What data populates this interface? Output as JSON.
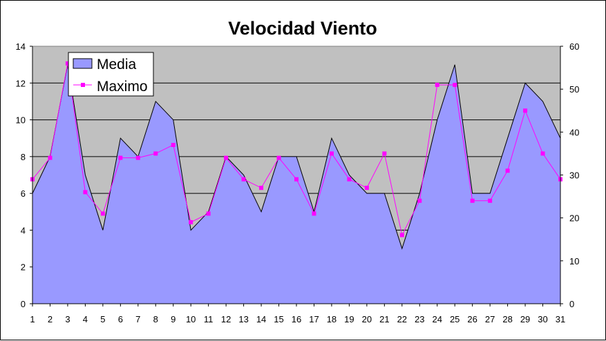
{
  "chart_data": {
    "type": "area",
    "title": "Velocidad Viento",
    "xlabel": "",
    "ylabel": "",
    "categories": [
      "1",
      "2",
      "3",
      "4",
      "5",
      "6",
      "7",
      "8",
      "9",
      "10",
      "11",
      "12",
      "13",
      "14",
      "15",
      "16",
      "17",
      "18",
      "19",
      "20",
      "21",
      "22",
      "23",
      "24",
      "25",
      "26",
      "27",
      "28",
      "29",
      "30",
      "31"
    ],
    "left_axis": {
      "min": 0,
      "max": 14,
      "step": 2,
      "ticks": [
        "0",
        "2",
        "4",
        "6",
        "8",
        "10",
        "12",
        "14"
      ]
    },
    "right_axis": {
      "min": 0,
      "max": 60,
      "step": 10,
      "ticks": [
        "0",
        "10",
        "20",
        "30",
        "40",
        "50",
        "60"
      ]
    },
    "series": [
      {
        "name": "Media",
        "type": "area",
        "axis": "left",
        "color": "#9999ff",
        "values": [
          6,
          8,
          13,
          7,
          4,
          9,
          8,
          11,
          10,
          4,
          5,
          8,
          7,
          5,
          8,
          8,
          5,
          9,
          7,
          6,
          6,
          3,
          6,
          10,
          13,
          6,
          6,
          9,
          12,
          11,
          9
        ]
      },
      {
        "name": "Maximo",
        "type": "line",
        "axis": "right",
        "color": "#ff00ff",
        "values": [
          29,
          34,
          56,
          26,
          21,
          34,
          34,
          35,
          37,
          19,
          21,
          34,
          29,
          27,
          34,
          29,
          21,
          35,
          29,
          27,
          35,
          16,
          24,
          51,
          51,
          24,
          24,
          31,
          45,
          35,
          29
        ]
      }
    ],
    "plot_background": "#c0c0c0",
    "grid": true,
    "legend_position": "top-left"
  }
}
